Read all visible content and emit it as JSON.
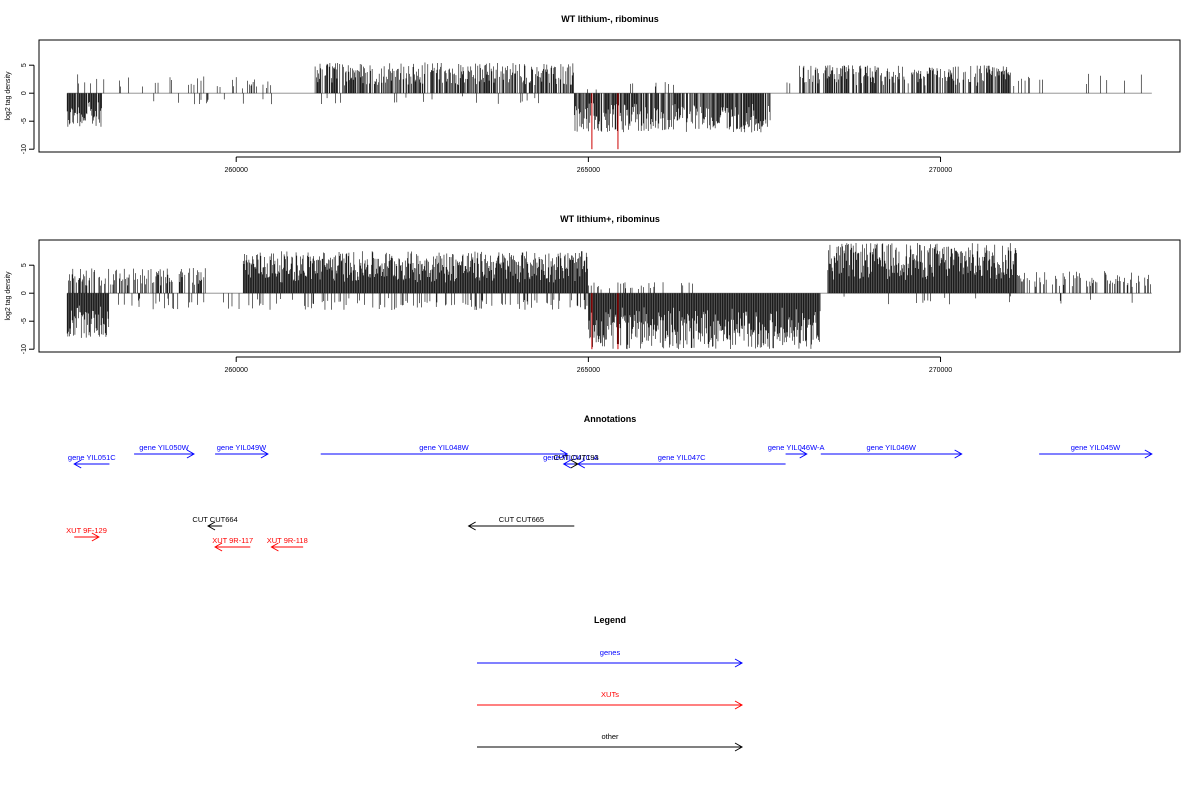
{
  "panels": [
    {
      "title": "WT lithium-, ribominus",
      "ylabel": "log2 tag density",
      "yticks": [
        -10,
        -5,
        0,
        5
      ],
      "ylim": [
        -10.5,
        9.5
      ],
      "xticks": [
        260000,
        265000,
        270000
      ],
      "xlim": [
        257200,
        273400
      ]
    },
    {
      "title": "WT lithium+, ribominus",
      "ylabel": "log2 tag density",
      "yticks": [
        -10,
        -5,
        0,
        5
      ],
      "ylim": [
        -10.5,
        9.5
      ],
      "xticks": [
        260000,
        265000,
        270000
      ],
      "xlim": [
        257200,
        273400
      ]
    }
  ],
  "annotations": {
    "title": "Annotations",
    "items": [
      {
        "label": "gene YIL051C",
        "type": "gene",
        "start": 257700,
        "end": 258200,
        "strand": "-",
        "row": 1
      },
      {
        "label": "gene YIL050W",
        "type": "gene",
        "start": 258550,
        "end": 259400,
        "strand": "+",
        "row": 0
      },
      {
        "label": "gene YIL049W",
        "type": "gene",
        "start": 259700,
        "end": 260450,
        "strand": "+",
        "row": 0
      },
      {
        "label": "gene YIL048W",
        "type": "gene",
        "start": 261200,
        "end": 264700,
        "strand": "+",
        "row": 0
      },
      {
        "label": "gene YIL047C-A",
        "type": "gene",
        "start": 264650,
        "end": 264850,
        "strand": "-",
        "row": 1
      },
      {
        "label": "gene YIL047C",
        "type": "gene",
        "start": 264850,
        "end": 267800,
        "strand": "-",
        "row": 1
      },
      {
        "label": "gene YIL046W-A",
        "type": "gene",
        "start": 267800,
        "end": 268100,
        "strand": "+",
        "row": 0
      },
      {
        "label": "gene YIL046W",
        "type": "gene",
        "start": 268300,
        "end": 270300,
        "strand": "+",
        "row": 0
      },
      {
        "label": "gene YIL045W",
        "type": "gene",
        "start": 271400,
        "end": 273000,
        "strand": "+",
        "row": 0
      },
      {
        "label": "XUT 9F-129",
        "type": "XUT",
        "start": 257700,
        "end": 258050,
        "strand": "+",
        "row": 3
      },
      {
        "label": "CUT CUT664",
        "type": "other",
        "start": 259600,
        "end": 259800,
        "strand": "-",
        "row": 2
      },
      {
        "label": "XUT 9R-117",
        "type": "XUT",
        "start": 259700,
        "end": 260200,
        "strand": "-",
        "row": 4
      },
      {
        "label": "XUT 9R-118",
        "type": "XUT",
        "start": 260500,
        "end": 260950,
        "strand": "-",
        "row": 4
      },
      {
        "label": "CUT CUT665",
        "type": "other",
        "start": 263300,
        "end": 264800,
        "strand": "-",
        "row": 2
      },
      {
        "label": "CUT CUT193",
        "type": "other",
        "start": 264800,
        "end": 264850,
        "strand": "+",
        "row": 1
      }
    ]
  },
  "legend": {
    "title": "Legend",
    "items": [
      {
        "label": "genes",
        "type": "gene"
      },
      {
        "label": "XUTs",
        "type": "XUT"
      },
      {
        "label": "other",
        "type": "other"
      }
    ]
  },
  "colors": {
    "gene": "#0000ff",
    "XUT": "#ff0000",
    "other": "#000000",
    "highlight": "#cc0000",
    "bar": "#000000",
    "zero": "#888888"
  },
  "chart_data": [
    {
      "type": "bar",
      "title": "WT lithium-, ribominus",
      "ylabel": "log2 tag density",
      "xlabel": "",
      "xlim": [
        257200,
        273400
      ],
      "ylim": [
        -10.5,
        9.5
      ],
      "segments": [
        {
          "start": 257600,
          "end": 258100,
          "strand": "-",
          "density": 0.9,
          "max": 6
        },
        {
          "start": 257700,
          "end": 258200,
          "strand": "+",
          "density": 0.2,
          "max": 3.5
        },
        {
          "start": 258300,
          "end": 260500,
          "strand": "+",
          "density": 0.12,
          "max": 3
        },
        {
          "start": 258700,
          "end": 260800,
          "strand": "-",
          "density": 0.05,
          "max": 2
        },
        {
          "start": 261100,
          "end": 264800,
          "strand": "+",
          "density": 0.7,
          "max": 5.5
        },
        {
          "start": 261200,
          "end": 264600,
          "strand": "-",
          "density": 0.05,
          "max": 2
        },
        {
          "start": 264800,
          "end": 267600,
          "strand": "-",
          "density": 0.8,
          "max": 7
        },
        {
          "start": 264900,
          "end": 266500,
          "strand": "+",
          "density": 0.05,
          "max": 2
        },
        {
          "start": 267700,
          "end": 267900,
          "strand": "+",
          "density": 0.2,
          "max": 2
        },
        {
          "start": 268000,
          "end": 271000,
          "strand": "+",
          "density": 0.7,
          "max": 5
        },
        {
          "start": 271000,
          "end": 273000,
          "strand": "+",
          "density": 0.06,
          "max": 3.5
        }
      ],
      "highlights": [
        {
          "x": 265050,
          "y": -10
        },
        {
          "x": 265420,
          "y": -10
        }
      ]
    },
    {
      "type": "bar",
      "title": "WT lithium+, ribominus",
      "ylabel": "log2 tag density",
      "xlabel": "",
      "xlim": [
        257200,
        273400
      ],
      "ylim": [
        -10.5,
        9.5
      ],
      "segments": [
        {
          "start": 257600,
          "end": 258200,
          "strand": "-",
          "density": 1,
          "max": 8
        },
        {
          "start": 257600,
          "end": 259600,
          "strand": "+",
          "density": 0.5,
          "max": 4.5
        },
        {
          "start": 258200,
          "end": 261000,
          "strand": "-",
          "density": 0.15,
          "max": 3
        },
        {
          "start": 260100,
          "end": 265000,
          "strand": "+",
          "density": 1,
          "max": 7.5
        },
        {
          "start": 261000,
          "end": 265000,
          "strand": "-",
          "density": 0.2,
          "max": 3
        },
        {
          "start": 265000,
          "end": 268300,
          "strand": "-",
          "density": 1,
          "max": 10
        },
        {
          "start": 265000,
          "end": 266500,
          "strand": "+",
          "density": 0.1,
          "max": 2
        },
        {
          "start": 268400,
          "end": 271100,
          "strand": "+",
          "density": 1,
          "max": 9
        },
        {
          "start": 271100,
          "end": 273000,
          "strand": "+",
          "density": 0.35,
          "max": 4
        },
        {
          "start": 268400,
          "end": 273000,
          "strand": "-",
          "density": 0.05,
          "max": 2
        }
      ],
      "highlights": [
        {
          "x": 265050,
          "y": -10
        },
        {
          "x": 265420,
          "y": -10
        }
      ]
    }
  ]
}
